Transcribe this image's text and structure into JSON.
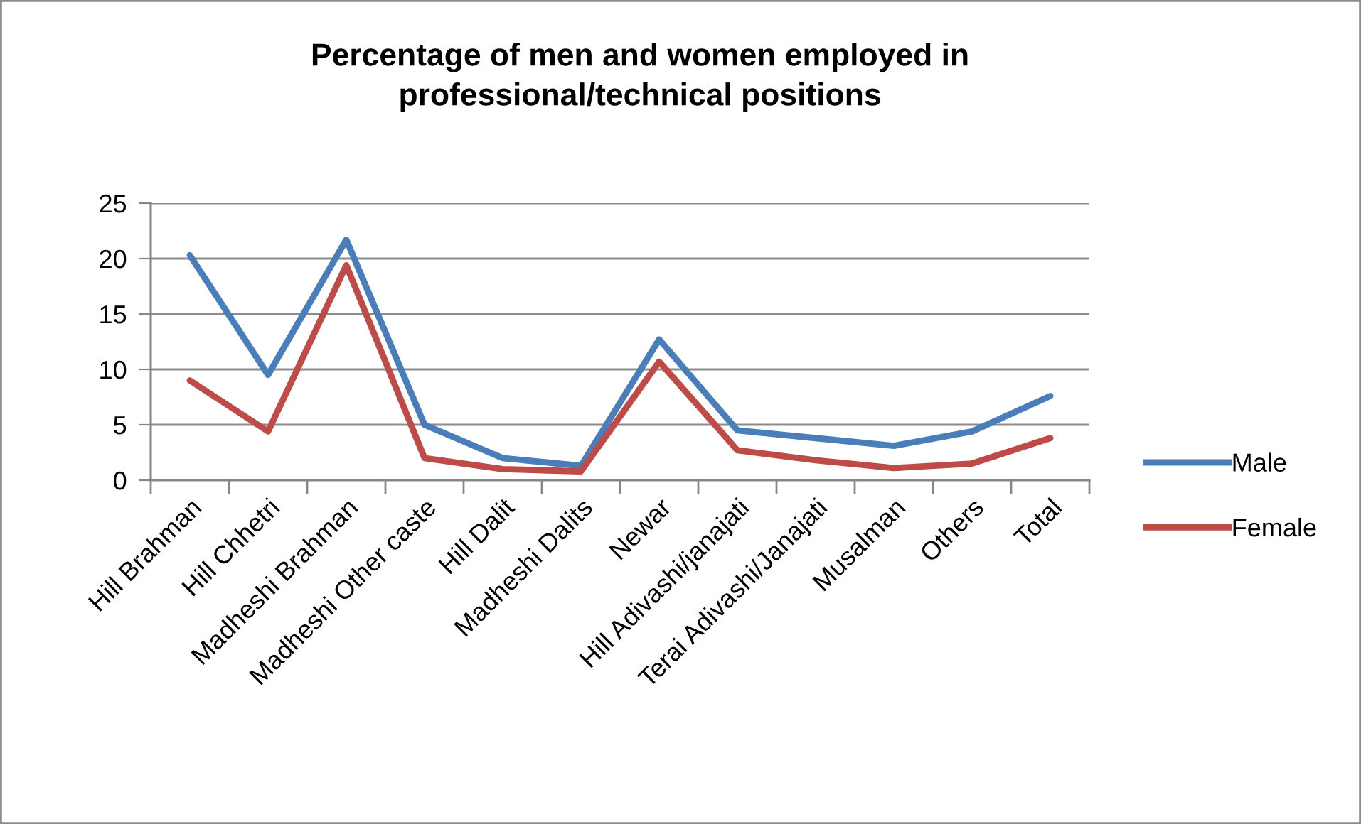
{
  "chart_data": {
    "type": "line",
    "title": "Percentage of men and women employed in\nprofessional/technical positions",
    "categories": [
      "Hill Brahman",
      "Hill Chhetri",
      "Madheshi Brahman",
      "Madheshi Other caste",
      "Hill Dalit",
      "Madheshi Dalits",
      "Newar",
      "Hill Adivashi/janajati",
      "Terai Adivashi/Janajati",
      "Musalman",
      "Others",
      "Total"
    ],
    "series": [
      {
        "name": "Male",
        "color": "#4a7ebb",
        "values": [
          20.3,
          9.5,
          21.7,
          5.0,
          2.0,
          1.3,
          12.7,
          4.5,
          3.8,
          3.1,
          4.4,
          7.6
        ]
      },
      {
        "name": "Female",
        "color": "#be4b48",
        "values": [
          9.0,
          4.4,
          19.4,
          2.0,
          1.0,
          0.8,
          10.7,
          2.7,
          1.8,
          1.1,
          1.5,
          3.8
        ]
      }
    ],
    "ylim": [
      0,
      25
    ],
    "yticks": [
      0,
      5,
      10,
      15,
      20,
      25
    ],
    "grid": "y",
    "legend": "right",
    "marker": "none",
    "line_style": "solid"
  }
}
